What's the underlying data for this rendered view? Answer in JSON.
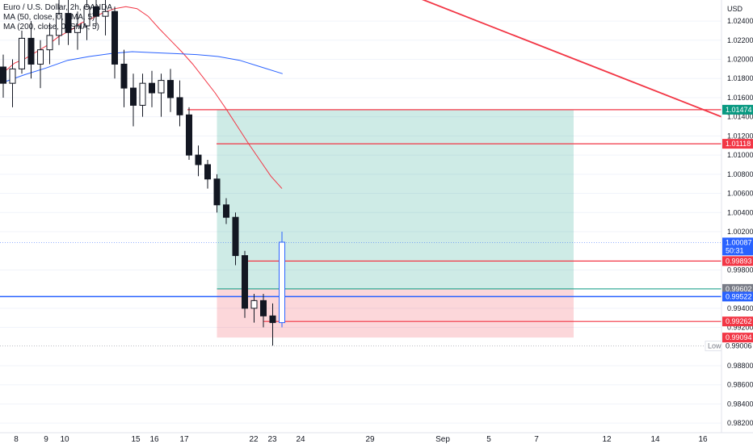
{
  "chart_data": {
    "type": "candlestick",
    "title": "Euro / U.S. Dollar, 2h, OANDA",
    "indicators": [
      "MA (50, close, 0, SMA, 5)",
      "MA (200, close, 0, SMA, 5)"
    ],
    "currency": "USD",
    "ylim": [
      0.981,
      1.0262
    ],
    "y_ticks": [
      "1.02400",
      "1.02200",
      "1.02000",
      "1.01800",
      "1.01600",
      "1.01400",
      "1.01200",
      "1.01000",
      "1.00800",
      "1.00600",
      "1.00400",
      "1.00200",
      "0.99800",
      "0.99400",
      "0.99200",
      "0.98800",
      "0.98600",
      "0.98400",
      "0.98200"
    ],
    "x_labels": [
      "8",
      "9",
      "10",
      "15",
      "16",
      "17",
      "22",
      "23",
      "24",
      "29",
      "Sep",
      "5",
      "7",
      "12",
      "14",
      "16"
    ],
    "price_labels": [
      {
        "text": "1.01474",
        "price": 1.01474,
        "color": "#089981"
      },
      {
        "text": "1.01118",
        "price": 1.01118,
        "color": "#f23645"
      },
      {
        "text": "1.00087",
        "sub": "50:31",
        "price": 1.00087,
        "color": "#2962ff"
      },
      {
        "text": "0.99893",
        "price": 0.99893,
        "color": "#f23645"
      },
      {
        "text": "0.99602",
        "price": 0.99602,
        "color": "#787b86"
      },
      {
        "text": "0.99522",
        "price": 0.99522,
        "color": "#2962ff"
      },
      {
        "text": "0.99262",
        "price": 0.99262,
        "color": "#f23645"
      },
      {
        "text": "0.99094",
        "price": 0.99094,
        "color": "#f23645"
      }
    ],
    "low_label": {
      "tag": "Low",
      "text": "0.99006",
      "price": 0.99006
    },
    "horizontal_levels": [
      {
        "price": 1.01474,
        "color": "#f23645",
        "from_index": 0
      },
      {
        "price": 1.01118,
        "color": "#f23645",
        "from_index": 1
      },
      {
        "price": 0.99893,
        "color": "#f23645",
        "from_index": 2
      },
      {
        "price": 0.99522,
        "color": "#2962ff",
        "from_index": 3
      },
      {
        "price": 0.99262,
        "color": "#f23645",
        "from_index": 4
      }
    ],
    "position": {
      "entry": 0.99602,
      "target": 1.01474,
      "stop": 0.99094
    },
    "trendline": {
      "from_price": 1.0285,
      "to_price": 1.014
    },
    "close_price": 1.00087,
    "candles": [
      [
        1.0192,
        1.0205,
        1.016,
        1.0175
      ],
      [
        1.0175,
        1.02,
        1.015,
        1.019
      ],
      [
        1.019,
        1.023,
        1.0185,
        1.0222
      ],
      [
        1.0222,
        1.024,
        1.018,
        1.0195
      ],
      [
        1.0195,
        1.022,
        1.017,
        1.021
      ],
      [
        1.021,
        1.0238,
        1.0195,
        1.0225
      ],
      [
        1.0225,
        1.0262,
        1.0215,
        1.0248
      ],
      [
        1.0248,
        1.0262,
        1.0215,
        1.0228
      ],
      [
        1.0228,
        1.025,
        1.021,
        1.0235
      ],
      [
        1.0235,
        1.0262,
        1.022,
        1.0255
      ],
      [
        1.0255,
        1.0262,
        1.0235,
        1.0245
      ],
      [
        1.0245,
        1.0262,
        1.0225,
        1.025
      ],
      [
        1.025,
        1.0255,
        1.018,
        1.0195
      ],
      [
        1.0195,
        1.021,
        1.015,
        1.017
      ],
      [
        1.017,
        1.0185,
        1.013,
        1.0152
      ],
      [
        1.0152,
        1.0185,
        1.014,
        1.0175
      ],
      [
        1.0175,
        1.0188,
        1.015,
        1.0165
      ],
      [
        1.0165,
        1.0185,
        1.014,
        1.0178
      ],
      [
        1.0178,
        1.019,
        1.0145,
        1.016
      ],
      [
        1.016,
        1.0178,
        1.013,
        1.0142
      ],
      [
        1.0142,
        1.015,
        1.0095,
        1.01
      ],
      [
        1.01,
        1.011,
        1.0078,
        1.009
      ],
      [
        1.009,
        1.0095,
        1.0065,
        1.0075
      ],
      [
        1.0075,
        1.008,
        1.004,
        1.0048
      ],
      [
        1.0048,
        1.0055,
        1.0028,
        1.0035
      ],
      [
        1.0035,
        1.004,
        0.9985,
        0.9995
      ],
      [
        0.9995,
        1.0,
        0.993,
        0.994
      ],
      [
        0.994,
        0.9955,
        0.9925,
        0.9948
      ],
      [
        0.9948,
        0.9955,
        0.992,
        0.9932
      ],
      [
        0.9932,
        0.9945,
        0.9901,
        0.9925
      ],
      [
        0.9925,
        1.002,
        0.992,
        1.0009
      ]
    ],
    "ma50": [
      1.0186,
      1.0196,
      1.0201,
      1.0208,
      1.0215,
      1.0224,
      1.023,
      1.0238,
      1.0243,
      1.0249,
      1.0253,
      1.0255,
      1.0253,
      1.0245,
      1.0232,
      1.022,
      1.0208,
      1.0195,
      1.018,
      1.0165,
      1.0148,
      1.013,
      1.0112,
      1.0095,
      1.0078,
      1.0065
    ],
    "ma200": [
      1.0176,
      1.0184,
      1.0191,
      1.0199,
      1.0203,
      1.0206,
      1.0208,
      1.0207,
      1.0206,
      1.0205,
      1.0203,
      1.0199,
      1.0192,
      1.0185
    ]
  }
}
